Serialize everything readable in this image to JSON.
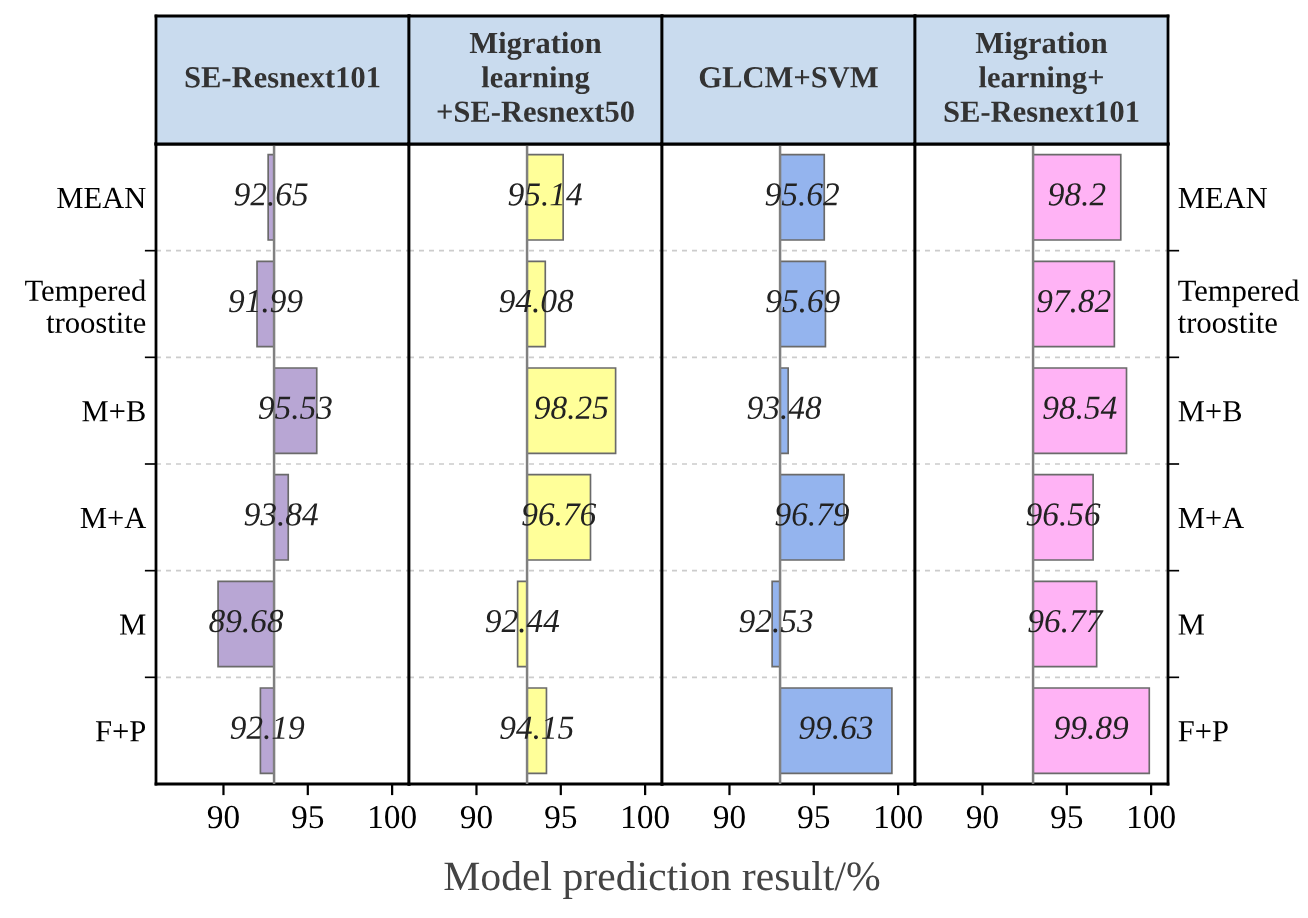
{
  "chart_data": [
    {
      "type": "bar",
      "orientation": "horizontal",
      "title": "SE-Resnext101",
      "xlabel": "Model prediction result/%",
      "categories": [
        "MEAN",
        "Tempered\ntroostite",
        "M+B",
        "M+A",
        "M",
        "F+P"
      ],
      "base": [
        93,
        93,
        93,
        93,
        93,
        93
      ],
      "values": [
        -0.35,
        -1.01,
        2.53,
        0.84,
        -3.32,
        -0.81
      ],
      "value_labels": [
        "92.65",
        "91.99",
        "95.53",
        "93.84",
        "89.68",
        "92.19"
      ],
      "color": "#b8a6d4",
      "xlim": [
        86,
        101
      ],
      "xticks": [
        90,
        95,
        100
      ],
      "grid": "y",
      "ref_lines": [
        {
          "axis": "x",
          "value": 93,
          "color": "#808080"
        }
      ]
    },
    {
      "type": "bar",
      "orientation": "horizontal",
      "title": "Migration\nlearning\n+SE-Resnext50",
      "categories": [
        null,
        null,
        null,
        null,
        null,
        null
      ],
      "base": [
        93,
        93,
        93,
        93,
        93,
        93
      ],
      "values": [
        2.14,
        1.08,
        5.25,
        3.76,
        -0.56,
        1.15
      ],
      "value_labels": [
        "95.14",
        "94.08",
        "98.25",
        "96.76",
        "92.44",
        "94.15"
      ],
      "color": "#ffff99",
      "xlim": [
        86,
        101
      ],
      "xticks": [
        90,
        95,
        100
      ],
      "grid": "y",
      "tick_labels": "x",
      "ref_lines": [
        {
          "axis": "x",
          "value": 93,
          "color": "#808080"
        }
      ]
    },
    {
      "type": "bar",
      "orientation": "horizontal",
      "title": "GLCM+SVM",
      "categories": [
        null,
        null,
        null,
        null,
        null,
        null
      ],
      "base": [
        93,
        93,
        93,
        93,
        93,
        93
      ],
      "values": [
        2.62,
        2.69,
        0.48,
        3.79,
        -0.47,
        6.63
      ],
      "value_labels": [
        "95.62",
        "95.69",
        "93.48",
        "96.79",
        "92.53",
        "99.63"
      ],
      "color": "#94b4ee",
      "xlim": [
        86,
        101
      ],
      "xticks": [
        90,
        95,
        100
      ],
      "grid": "y",
      "tick_labels": "x",
      "ref_lines": [
        {
          "axis": "x",
          "value": 93,
          "color": "#808080"
        }
      ]
    },
    {
      "type": "bar",
      "orientation": "horizontal",
      "title": "Migration\nlearning+\nSE-Resnext101",
      "categories": [
        "MEAN",
        "Tempered\ntroostite",
        "M+B",
        "M+A",
        "M",
        "F+P"
      ],
      "base": [
        93,
        93,
        93,
        93,
        93,
        93
      ],
      "values": [
        5.2,
        4.82,
        5.54,
        3.56,
        3.77,
        6.89
      ],
      "value_labels": [
        "98.2",
        "97.82",
        "98.54",
        "96.56",
        "96.77",
        "99.89"
      ],
      "color": "#ffb3f5",
      "xlim": [
        86,
        101
      ],
      "xticks": [
        90,
        95,
        100
      ],
      "grid": "y",
      "ref_lines": [
        {
          "axis": "x",
          "value": 93,
          "color": "#808080"
        }
      ]
    }
  ]
}
